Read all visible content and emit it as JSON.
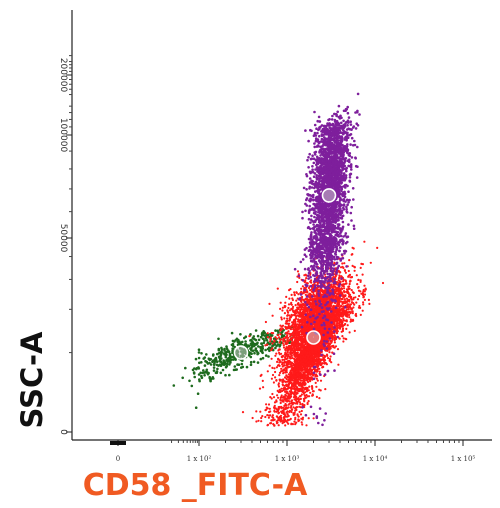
{
  "chart_data": {
    "type": "scatter",
    "xlabel": "CD58 _FITC-A",
    "ylabel": "SSC-A",
    "x_scale": "biexponential",
    "y_scale": "biexponential",
    "xlim": [
      -20,
      100000
    ],
    "ylim": [
      0,
      262144
    ],
    "x_ticks": [
      {
        "value": 0,
        "label": "0"
      },
      {
        "value": 100,
        "label": "1 x 10²"
      },
      {
        "value": 1000,
        "label": "1 x 10³"
      },
      {
        "value": 10000,
        "label": "1 x 10⁴"
      },
      {
        "value": 100000,
        "label": "1 x 10⁵"
      }
    ],
    "y_ticks": [
      {
        "value": 0,
        "label": "0"
      },
      {
        "value": 50000,
        "label": "50000"
      },
      {
        "value": 100000,
        "label": "100000"
      },
      {
        "value": 200000,
        "label": "200000"
      }
    ],
    "grid": false,
    "legend": "none",
    "xlabel_color": "#f05a22",
    "series": [
      {
        "color": "#1e6b1e",
        "center": {
          "x": 300,
          "y": 10000
        },
        "spread_x_decades": 0.28,
        "spread_y_fraction": 0.28,
        "approx_events": 420
      },
      {
        "color": "#ff1a1a",
        "center": {
          "x": 2000,
          "y": 13000
        },
        "spread_x_decades": 0.2,
        "spread_y_fraction": 0.35,
        "approx_events": 5200
      },
      {
        "color": "#7e1f9c",
        "center": {
          "x": 3000,
          "y": 67000
        },
        "spread_x_decades": 0.1,
        "spread_y_fraction": 0.35,
        "approx_events": 2600
      }
    ],
    "markers": [
      {
        "x": 300,
        "y": 10000
      },
      {
        "x": 2000,
        "y": 13000
      },
      {
        "x": 3000,
        "y": 67000
      }
    ]
  }
}
